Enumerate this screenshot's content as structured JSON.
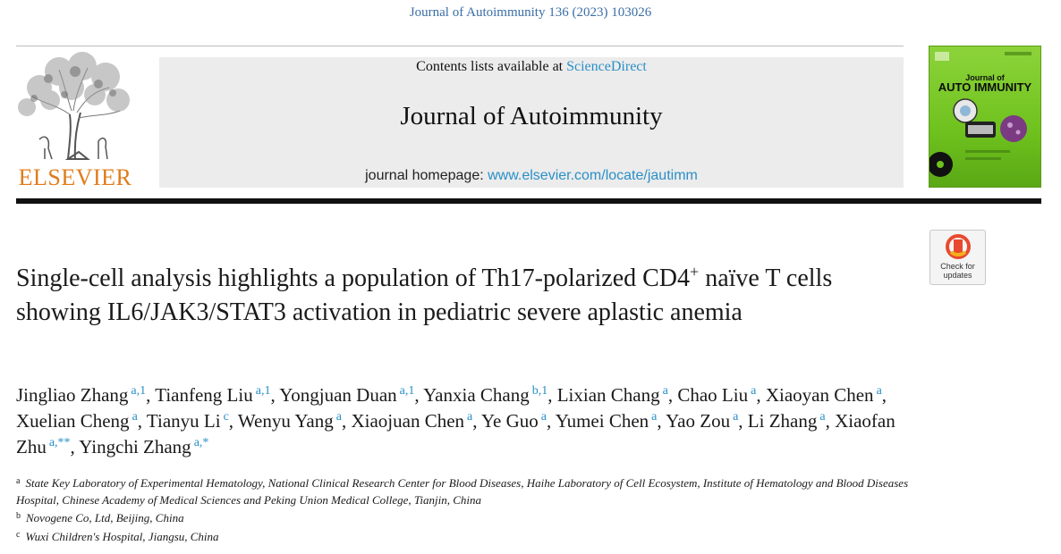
{
  "header": {
    "citation": "Journal of Autoimmunity 136 (2023) 103026",
    "contents_prefix": "Contents lists available at ",
    "contents_link": "ScienceDirect",
    "journal_name": "Journal of Autoimmunity",
    "homepage_prefix": "journal homepage: ",
    "homepage_link": "www.elsevier.com/locate/jautimm",
    "publisher": "ELSEVIER",
    "cover_line1": "Journal of",
    "cover_line2": "AUTO IMMUNITY",
    "check_label_line1": "Check for",
    "check_label_line2": "updates"
  },
  "article": {
    "title_part1": "Single-cell analysis highlights a population of Th17-polarized CD4",
    "title_sup": "+",
    "title_part2": " naïve T cells showing IL6/JAK3/STAT3 activation in pediatric severe aplastic anemia"
  },
  "authors": [
    {
      "name": "Jingliao Zhang",
      "aff": "a,1",
      "sep": ", "
    },
    {
      "name": "Tianfeng Liu",
      "aff": "a,1",
      "sep": ", "
    },
    {
      "name": "Yongjuan Duan",
      "aff": "a,1",
      "sep": ", "
    },
    {
      "name": "Yanxia Chang",
      "aff": "b,1",
      "sep": ", "
    },
    {
      "name": "Lixian Chang",
      "aff": "a",
      "sep": ", "
    },
    {
      "name": "Chao Liu",
      "aff": "a",
      "sep": ", "
    },
    {
      "name": "Xiaoyan Chen",
      "aff": "a",
      "sep": ", "
    },
    {
      "name": "Xuelian Cheng",
      "aff": "a",
      "sep": ", "
    },
    {
      "name": "Tianyu Li",
      "aff": "c",
      "sep": ", "
    },
    {
      "name": "Wenyu Yang",
      "aff": "a",
      "sep": ", "
    },
    {
      "name": "Xiaojuan Chen",
      "aff": "a",
      "sep": ", "
    },
    {
      "name": "Ye Guo",
      "aff": "a",
      "sep": ", "
    },
    {
      "name": "Yumei Chen",
      "aff": "a",
      "sep": ", "
    },
    {
      "name": "Yao Zou",
      "aff": "a",
      "sep": ", "
    },
    {
      "name": "Li Zhang",
      "aff": "a",
      "sep": ", "
    },
    {
      "name": "Xiaofan Zhu",
      "aff": "a,**",
      "sep": ", "
    },
    {
      "name": "Yingchi Zhang",
      "aff": "a,*",
      "sep": ""
    }
  ],
  "affiliations": [
    {
      "label": "a",
      "text": "State Key Laboratory of Experimental Hematology, National Clinical Research Center for Blood Diseases, Haihe Laboratory of Cell Ecosystem, Institute of Hematology and Blood Diseases Hospital, Chinese Academy of Medical Sciences and Peking Union Medical College, Tianjin, China"
    },
    {
      "label": "b",
      "text": "Novogene Co, Ltd, Beijing, China"
    },
    {
      "label": "c",
      "text": "Wuxi Children's Hospital, Jiangsu, China"
    }
  ],
  "colors": {
    "link": "#2a8fc7",
    "citation": "#3a6ea5",
    "publisher_orange": "#e07b1a",
    "cover_green": "#7cc72a"
  }
}
